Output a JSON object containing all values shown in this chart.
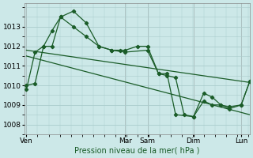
{
  "bg_color": "#cce8e8",
  "plot_bg_color": "#cce8e8",
  "grid_color": "#aacccc",
  "line_color": "#1a5c28",
  "marker_color": "#1a5c28",
  "vline_color": "#c09090",
  "ylim": [
    1007.5,
    1014.2
  ],
  "yticks": [
    1008,
    1009,
    1010,
    1011,
    1012,
    1013
  ],
  "xlim": [
    -2,
    262
  ],
  "xlabel": "Pression niveau de la mer( hPa )",
  "x_tick_pos_display": [
    0,
    116,
    142,
    196,
    252
  ],
  "x_tick_display": [
    "Ven",
    "Mar",
    "Sam",
    "Dim",
    "Lun"
  ],
  "vline_positions": [
    0,
    116,
    142,
    196,
    252
  ],
  "series1_x": [
    0,
    10,
    20,
    30,
    40,
    55,
    70,
    85,
    100,
    110,
    116,
    130,
    142,
    155,
    165,
    175,
    185,
    196,
    208,
    218,
    228,
    238,
    252,
    262
  ],
  "series1_y": [
    1010.0,
    1010.1,
    1012.0,
    1012.8,
    1013.5,
    1013.8,
    1013.2,
    1012.0,
    1011.8,
    1011.8,
    1011.8,
    1012.0,
    1012.0,
    1010.6,
    1010.5,
    1010.4,
    1008.5,
    1008.4,
    1009.6,
    1009.4,
    1009.0,
    1008.8,
    1009.0,
    1010.2
  ],
  "series2_x": [
    0,
    10,
    20,
    30,
    40,
    55,
    70,
    85,
    100,
    116,
    142,
    155,
    165,
    175,
    196,
    208,
    218,
    228,
    238,
    252,
    262
  ],
  "series2_y": [
    1009.8,
    1011.7,
    1012.0,
    1012.0,
    1013.5,
    1013.0,
    1012.5,
    1012.0,
    1011.8,
    1011.7,
    1011.8,
    1010.6,
    1010.6,
    1008.5,
    1008.4,
    1009.2,
    1009.0,
    1009.0,
    1008.9,
    1009.0,
    1010.2
  ],
  "trend_x": [
    0,
    262
  ],
  "trend_y": [
    1011.8,
    1010.15
  ],
  "trend2_x": [
    0,
    262
  ],
  "trend2_y": [
    1011.5,
    1008.5
  ]
}
